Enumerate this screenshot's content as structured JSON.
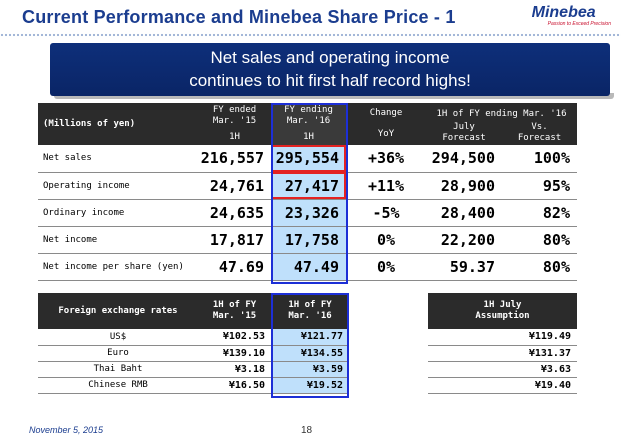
{
  "header": {
    "title": "Current Performance and Minebea Share Price - 1",
    "logo_name": "Minebea",
    "logo_tagline": "Passion to Exceed Precision"
  },
  "banner": {
    "line1": "Net sales and operating income",
    "line2": "continues to hit first half record highs!"
  },
  "main_table": {
    "unit_label": "(Millions of yen)",
    "col1": {
      "line1": "FY ended",
      "line2": "Mar. '15",
      "line3": "1H"
    },
    "col2": {
      "line1": "FY ending",
      "line2": "Mar. '16",
      "line3": "1H"
    },
    "col3": {
      "line1": "Change",
      "line2": "YoY"
    },
    "col_group": "1H of FY ending Mar. '16",
    "col4": {
      "line1": "July",
      "line2": "Forecast"
    },
    "col5": {
      "line1": "Vs.",
      "line2": "Forecast"
    },
    "rows": [
      {
        "label": "Net sales",
        "prev": "216,557",
        "curr": "295,554",
        "change": "+36%",
        "forecast": "294,500",
        "vs": "100%"
      },
      {
        "label": "Operating income",
        "prev": "24,761",
        "curr": "27,417",
        "change": "+11%",
        "forecast": "28,900",
        "vs": "95%"
      },
      {
        "label": "Ordinary income",
        "prev": "24,635",
        "curr": "23,326",
        "change": "-5%",
        "forecast": "28,400",
        "vs": "82%"
      },
      {
        "label": "Net income",
        "prev": "17,817",
        "curr": "17,758",
        "change": "0%",
        "forecast": "22,200",
        "vs": "80%"
      },
      {
        "label": "Net income per share (yen)",
        "prev": "47.69",
        "curr": "47.49",
        "change": "0%",
        "forecast": "59.37",
        "vs": "80%"
      }
    ]
  },
  "fx_table": {
    "label": "Foreign exchange rates",
    "col1": {
      "line1": "1H of FY",
      "line2": "Mar. '15"
    },
    "col2": {
      "line1": "1H of FY",
      "line2": "Mar. '16"
    },
    "col3": {
      "line1": "1H July",
      "line2": "Assumption"
    },
    "rows": [
      {
        "label": "US$",
        "prev": "¥102.53",
        "curr": "¥121.77",
        "assumption": "¥119.49"
      },
      {
        "label": "Euro",
        "prev": "¥139.10",
        "curr": "¥134.55",
        "assumption": "¥131.37"
      },
      {
        "label": "Thai Baht",
        "prev": "¥3.18",
        "curr": "¥3.59",
        "assumption": "¥3.63"
      },
      {
        "label": "Chinese RMB",
        "prev": "¥16.50",
        "curr": "¥19.52",
        "assumption": "¥19.40"
      }
    ]
  },
  "footer": {
    "date": "November 5, 2015",
    "page": "18"
  },
  "colors": {
    "brand_blue": "#1b3d8f",
    "banner_navy": "#0e2f7a",
    "highlight_blue": "#bfe0fb",
    "box_blue": "#1d2fd6",
    "box_red": "#e32222",
    "header_dark": "#2b2b2b"
  }
}
